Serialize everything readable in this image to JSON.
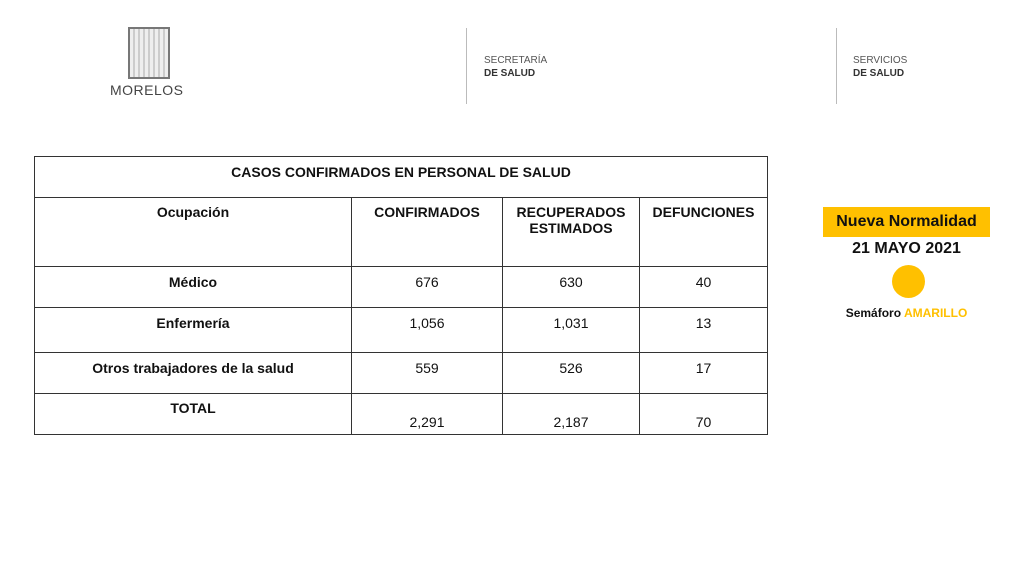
{
  "header": {
    "logo_text": "MORELOS",
    "org1": {
      "line1": "SECRETARÍA",
      "line2": "DE SALUD"
    },
    "org2": {
      "line1": "SERVICIOS",
      "line2": "DE SALUD"
    }
  },
  "table": {
    "title": "CASOS CONFIRMADOS EN PERSONAL DE SALUD",
    "columns": [
      "Ocupación",
      "CONFIRMADOS",
      "RECUPERADOS ESTIMADOS",
      "DEFUNCIONES"
    ],
    "rows": [
      [
        "Médico",
        "676",
        "630",
        "40"
      ],
      [
        "Enfermería",
        "1,056",
        "1,031",
        "13"
      ],
      [
        "Otros trabajadores de la salud",
        "559",
        "526",
        "17"
      ],
      [
        "TOTAL",
        "2,291",
        "2,187",
        "70"
      ]
    ]
  },
  "status": {
    "badge": "Nueva Normalidad",
    "date": "21 MAYO 2021",
    "label": "Semáforo",
    "level": "AMARILLO",
    "color": "#FFC000"
  }
}
